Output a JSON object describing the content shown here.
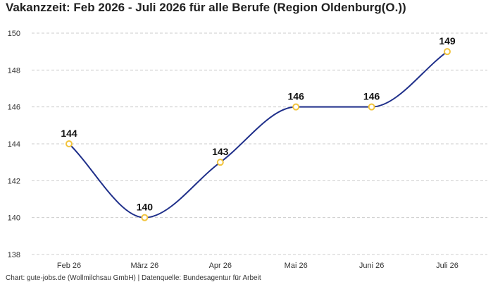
{
  "chart_data": {
    "type": "line",
    "title": "Vakanzzeit: Feb 2026 - Juli 2026 für alle Berufe (Region Oldenburg(O.))",
    "categories": [
      "Feb 26",
      "März 26",
      "Apr 26",
      "Mai 26",
      "Juni 26",
      "Juli 26"
    ],
    "values": [
      144,
      140,
      143,
      146,
      146,
      149
    ],
    "ylim": [
      138,
      150
    ],
    "yticks": [
      138,
      140,
      142,
      144,
      146,
      148,
      150
    ],
    "grid": true,
    "data_labels": true,
    "line_color": "#1f2f8a",
    "marker_color": "#f2c43d",
    "footer": "Chart: gute-jobs.de (Wollmilchsau GmbH) | Datenquelle: Bundesagentur für Arbeit"
  }
}
